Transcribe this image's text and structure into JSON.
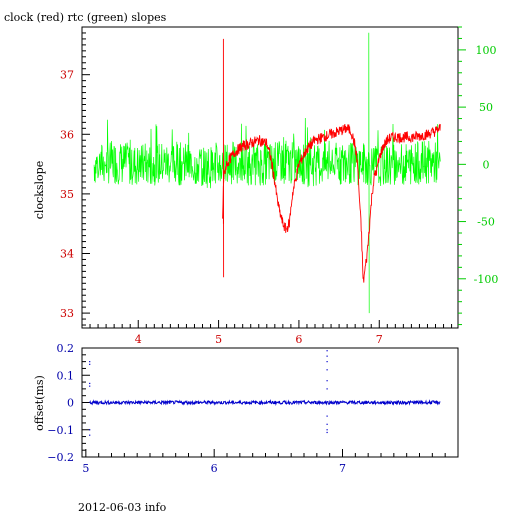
{
  "footer_text": "2012-06-03 info",
  "chart_data": [
    {
      "type": "line",
      "title": "clock (red) rtc (green) slopes",
      "ylabel": "clockslope",
      "y2label": "",
      "xlim": [
        3.3,
        7.98
      ],
      "ylim": [
        32.75,
        37.8
      ],
      "y2lim": [
        -143,
        120
      ],
      "x_ticks": [
        4,
        5,
        6,
        7
      ],
      "y_ticks": [
        33,
        34,
        35,
        36,
        37
      ],
      "y2_ticks": [
        -100,
        -50,
        0,
        50,
        100
      ],
      "colors": {
        "clock": "#ff0000",
        "rtc": "#00ff00",
        "axis_left": "#cc0000",
        "axis_right": "#00cc00",
        "axis_bottom": "#cc0000"
      },
      "series": [
        {
          "name": "clock",
          "axis": "left",
          "x": [
            5.05,
            5.06,
            5.08,
            5.1,
            5.15,
            5.2,
            5.3,
            5.4,
            5.5,
            5.6,
            5.65,
            5.7,
            5.73,
            5.76,
            5.8,
            5.84,
            5.88,
            5.92,
            6.0,
            6.1,
            6.2,
            6.3,
            6.4,
            6.5,
            6.6,
            6.65,
            6.7,
            6.73,
            6.75,
            6.78,
            6.8,
            6.83,
            6.85,
            6.88,
            6.91,
            6.94,
            6.97,
            7.0,
            7.05,
            7.1,
            7.15,
            7.2,
            7.3,
            7.4,
            7.5,
            7.6,
            7.7,
            7.76
          ],
          "y": [
            34.6,
            35.2,
            35.4,
            35.5,
            35.6,
            35.7,
            35.8,
            35.85,
            35.9,
            35.85,
            35.6,
            35.2,
            34.9,
            34.7,
            34.5,
            34.4,
            34.5,
            35.0,
            35.5,
            35.75,
            35.9,
            35.95,
            36.0,
            36.05,
            36.1,
            36.05,
            35.8,
            35.5,
            35.0,
            34.3,
            33.5,
            33.8,
            34.0,
            34.5,
            35.0,
            35.3,
            35.4,
            35.6,
            35.8,
            35.9,
            35.95,
            35.95,
            35.95,
            35.95,
            35.97,
            36.0,
            36.05,
            36.1
          ]
        },
        {
          "name": "rtc",
          "axis": "right",
          "x": [
            3.45,
            3.7,
            4.0,
            4.3,
            4.6,
            4.9,
            5.2,
            5.5,
            5.8,
            6.1,
            6.4,
            6.7,
            7.0,
            7.3,
            7.6,
            7.76
          ],
          "y": [
            0,
            2,
            -1,
            1,
            0,
            -2,
            1,
            0,
            2,
            -1,
            0,
            1,
            -1,
            0,
            2,
            0
          ]
        }
      ]
    },
    {
      "type": "scatter",
      "ylabel": "offset(ms)",
      "xlim": [
        4.97,
        7.9
      ],
      "ylim": [
        -0.2,
        0.2
      ],
      "x_ticks": [
        5,
        6,
        7
      ],
      "y_ticks": [
        0.2,
        0.1,
        0,
        -0.1,
        -0.2
      ],
      "y_tick_labels": [
        "0.2",
        "0.1",
        "0",
        "−0.1",
        "−0.2"
      ],
      "colors": {
        "points": "#0000cc",
        "axis": "#0000aa"
      },
      "series": [
        {
          "name": "",
          "x": [
            5.03,
            5.1,
            5.3,
            5.5,
            5.7,
            5.9,
            6.1,
            6.3,
            6.5,
            6.7,
            6.88,
            7.0,
            7.2,
            7.4,
            7.6,
            7.76
          ],
          "y": [
            0,
            0,
            0,
            0,
            0,
            0,
            0,
            0,
            0,
            0,
            0,
            0,
            0,
            0,
            0,
            0
          ]
        }
      ]
    }
  ]
}
